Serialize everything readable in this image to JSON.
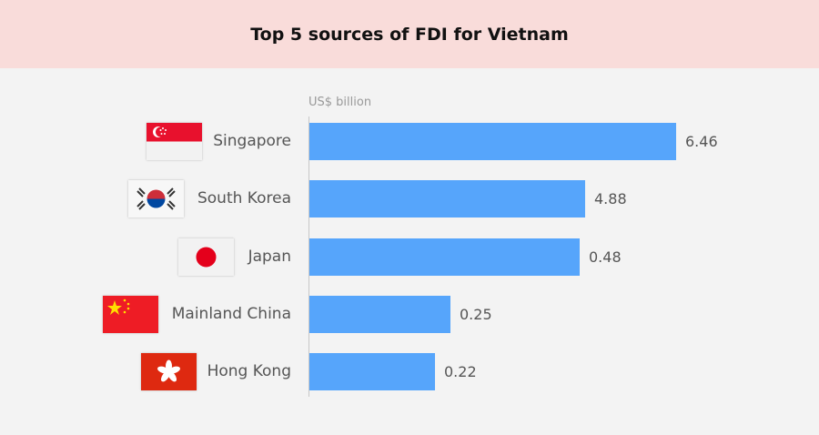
{
  "chart_data": {
    "type": "bar",
    "orientation": "horizontal",
    "title": "Top 5 sources of FDI for Vietnam",
    "unit_label": "US$ billion",
    "categories": [
      "Singapore",
      "South Korea",
      "Japan",
      "Mainland China",
      "Hong Kong"
    ],
    "values": [
      6.46,
      4.88,
      0.48,
      0.25,
      0.22
    ],
    "value_labels": [
      "6.46",
      "4.88",
      "0.48",
      "0.25",
      "0.22"
    ],
    "flag_icons": [
      "singapore-flag-icon",
      "south-korea-flag-icon",
      "japan-flag-icon",
      "china-flag-icon",
      "hong-kong-flag-icon"
    ],
    "bar_color": "#56a5fb",
    "header_color": "#f9dcda",
    "grid": false,
    "legend": "none"
  }
}
